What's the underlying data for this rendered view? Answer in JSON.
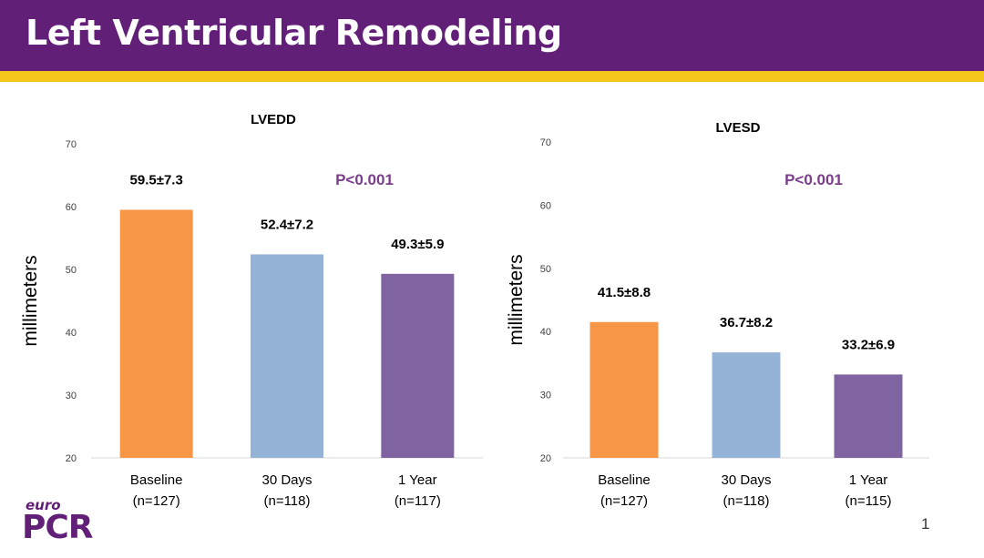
{
  "slide": {
    "title": "Left Ventricular Remodeling",
    "page_number": "1",
    "logo": {
      "top": "euro",
      "bottom": "PCR"
    }
  },
  "colors": {
    "header": "#621f78",
    "stripe": "#f5c61a",
    "pvalue": "#7b3d8c",
    "bars": [
      "#f79646",
      "#95b3d7",
      "#8064a2"
    ]
  },
  "chart_data": [
    {
      "type": "bar",
      "title": "LVEDD",
      "ylabel": "millimeters",
      "ylim": [
        20,
        70
      ],
      "yticks": [
        20,
        30,
        40,
        50,
        60,
        70
      ],
      "pvalue": "P<0.001",
      "categories": [
        "Baseline",
        "30 Days",
        "1 Year"
      ],
      "category_sublabels": [
        "(n=127)",
        "(n=118)",
        "(n=117)"
      ],
      "values": [
        59.5,
        52.4,
        49.3
      ],
      "data_labels": [
        "59.5±7.3",
        "52.4±7.2",
        "49.3±5.9"
      ],
      "grid": false
    },
    {
      "type": "bar",
      "title": "LVESD",
      "ylabel": "millimeters",
      "ylim": [
        20,
        70
      ],
      "yticks": [
        20,
        30,
        40,
        50,
        60,
        70
      ],
      "pvalue": "P<0.001",
      "categories": [
        "Baseline",
        "30 Days",
        "1 Year"
      ],
      "category_sublabels": [
        "(n=127)",
        "(n=118)",
        "(n=115)"
      ],
      "values": [
        41.5,
        36.7,
        33.2
      ],
      "data_labels": [
        "41.5±8.8",
        "36.7±8.2",
        "33.2±6.9"
      ],
      "grid": false
    }
  ]
}
